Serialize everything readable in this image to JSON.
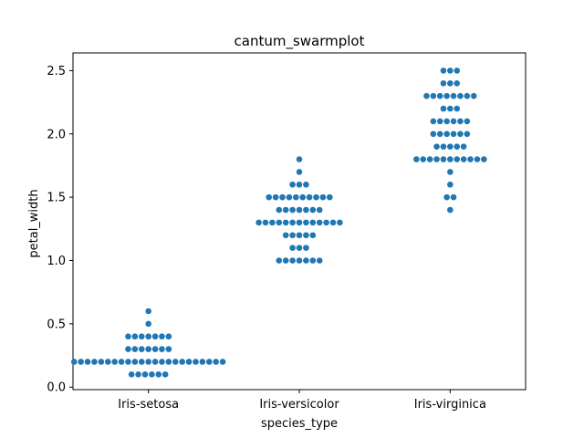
{
  "chart_data": {
    "type": "scatter",
    "subtype": "swarm",
    "title": "cantum_swarmplot",
    "xlabel": "species_type",
    "ylabel": "petal_width",
    "categories": [
      "Iris-setosa",
      "Iris-versicolor",
      "Iris-virginica"
    ],
    "ylim": [
      -0.02,
      2.64
    ],
    "yticks": [
      0.0,
      0.5,
      1.0,
      1.5,
      2.0,
      2.5
    ],
    "ytick_labels": [
      "0.0",
      "0.5",
      "1.0",
      "1.5",
      "2.0",
      "2.5"
    ],
    "grid": false,
    "legend": "none",
    "marker_color": "#1f77b4",
    "series": [
      {
        "category": "Iris-setosa",
        "values": [
          0.1,
          0.1,
          0.1,
          0.1,
          0.1,
          0.1,
          0.2,
          0.2,
          0.2,
          0.2,
          0.2,
          0.2,
          0.2,
          0.2,
          0.2,
          0.2,
          0.2,
          0.2,
          0.2,
          0.2,
          0.2,
          0.2,
          0.2,
          0.2,
          0.2,
          0.2,
          0.2,
          0.2,
          0.2,
          0.3,
          0.3,
          0.3,
          0.3,
          0.3,
          0.3,
          0.3,
          0.4,
          0.4,
          0.4,
          0.4,
          0.4,
          0.4,
          0.4,
          0.5,
          0.6
        ]
      },
      {
        "category": "Iris-versicolor",
        "values": [
          1.0,
          1.0,
          1.0,
          1.0,
          1.0,
          1.0,
          1.0,
          1.1,
          1.1,
          1.1,
          1.2,
          1.2,
          1.2,
          1.2,
          1.2,
          1.3,
          1.3,
          1.3,
          1.3,
          1.3,
          1.3,
          1.3,
          1.3,
          1.3,
          1.3,
          1.3,
          1.3,
          1.3,
          1.4,
          1.4,
          1.4,
          1.4,
          1.4,
          1.4,
          1.4,
          1.5,
          1.5,
          1.5,
          1.5,
          1.5,
          1.5,
          1.5,
          1.5,
          1.5,
          1.5,
          1.6,
          1.6,
          1.6,
          1.7,
          1.8
        ]
      },
      {
        "category": "Iris-virginica",
        "values": [
          1.4,
          1.5,
          1.5,
          1.6,
          1.7,
          1.8,
          1.8,
          1.8,
          1.8,
          1.8,
          1.8,
          1.8,
          1.8,
          1.8,
          1.8,
          1.8,
          1.9,
          1.9,
          1.9,
          1.9,
          1.9,
          2.0,
          2.0,
          2.0,
          2.0,
          2.0,
          2.0,
          2.1,
          2.1,
          2.1,
          2.1,
          2.1,
          2.1,
          2.2,
          2.2,
          2.2,
          2.3,
          2.3,
          2.3,
          2.3,
          2.3,
          2.3,
          2.3,
          2.3,
          2.4,
          2.4,
          2.4,
          2.5,
          2.5,
          2.5
        ]
      }
    ]
  }
}
